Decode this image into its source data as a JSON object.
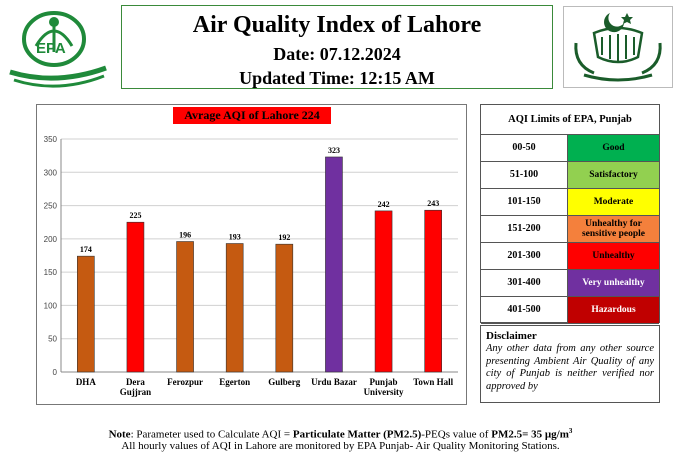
{
  "header": {
    "title": "Air Quality Index of Lahore",
    "date": "Date: 07.12.2024",
    "updated": "Updated Time: 12:15 AM"
  },
  "logos": {
    "epa_text": "EPA",
    "punjab_emblem": "punjab-emblem-icon"
  },
  "chart_data": {
    "type": "bar",
    "title": "Avrage AQI of Lahore 224",
    "categories": [
      "DHA",
      "Dera Gujjran",
      "Ferozpur",
      "Egerton",
      "Gulberg",
      "Urdu Bazar",
      "Punjab University",
      "Town Hall"
    ],
    "category_lines": [
      [
        "DHA"
      ],
      [
        "Dera",
        "Gujjran"
      ],
      [
        "Ferozpur"
      ],
      [
        "Egerton"
      ],
      [
        "Gulberg"
      ],
      [
        "Urdu Bazar"
      ],
      [
        "Punjab",
        "University"
      ],
      [
        "Town Hall"
      ]
    ],
    "values": [
      174,
      225,
      196,
      193,
      192,
      323,
      242,
      243
    ],
    "bar_colors": [
      "#c55a11",
      "#ff0000",
      "#c55a11",
      "#c55a11",
      "#c55a11",
      "#7030a0",
      "#ff0000",
      "#ff0000"
    ],
    "ylim": [
      0,
      350
    ],
    "yticks": [
      0,
      50,
      100,
      150,
      200,
      250,
      300,
      350
    ],
    "grid": true,
    "xlabel": "",
    "ylabel": ""
  },
  "limits": {
    "title": "AQI Limits of EPA, Punjab",
    "rows": [
      {
        "range": "00-50",
        "category": "Good",
        "color": "#00b050",
        "text_color": "#000000"
      },
      {
        "range": "51-100",
        "category": "Satisfactory",
        "color": "#92d050",
        "text_color": "#000000"
      },
      {
        "range": "101-150",
        "category": "Moderate",
        "color": "#ffff00",
        "text_color": "#000000"
      },
      {
        "range": "151-200",
        "category": "Unhealthy for sensitive people",
        "color": "#f4803c",
        "text_color": "#000000"
      },
      {
        "range": "201-300",
        "category": "Unhealthy",
        "color": "#ff0000",
        "text_color": "#000000"
      },
      {
        "range": "301-400",
        "category": "Very unhealthy",
        "color": "#7030a0",
        "text_color": "#ffffff"
      },
      {
        "range": "401-500",
        "category": "Hazardous",
        "color": "#c00000",
        "text_color": "#ffffff"
      }
    ]
  },
  "disclaimer": {
    "title": "Disclaimer",
    "text": "Any other data from any other source presenting Ambient Air Quality of any city of Punjab is neither verified nor approved by"
  },
  "footer": {
    "note_label": "Note",
    "note_pre": ": Parameter used to Calculate AQI = ",
    "note_bold": "Particulate Matter (PM2.5)",
    "note_mid": "-PEQs value of ",
    "note_bold2": "PM2.5= 35 µg/m",
    "note_sup": "3",
    "line2": "All hourly values of AQI in Lahore are monitored by EPA Punjab- Air Quality Monitoring Stations."
  }
}
